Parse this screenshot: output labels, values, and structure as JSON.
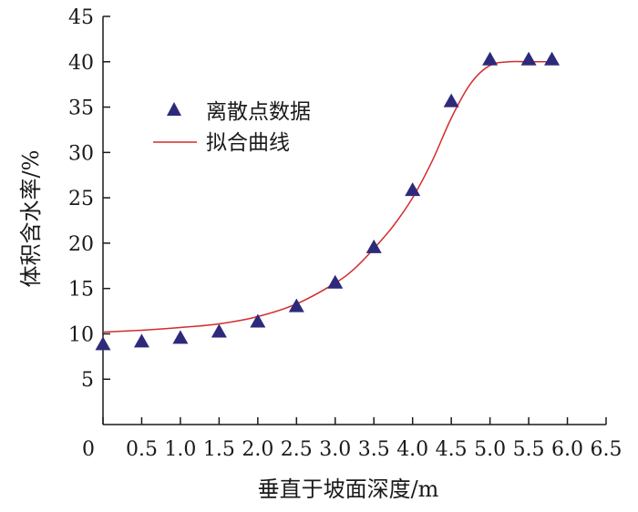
{
  "chart_data": {
    "type": "scatter",
    "title": "",
    "xlabel": "垂直于坡面深度/m",
    "ylabel": "体积含水率/%",
    "xlim": [
      0,
      6.5
    ],
    "ylim": [
      0,
      45
    ],
    "x_ticks": [
      0,
      0.5,
      1.0,
      1.5,
      2.0,
      2.5,
      3.0,
      3.5,
      4.0,
      4.5,
      5.0,
      5.5,
      6.0,
      6.5
    ],
    "x_tick_labels": [
      "0",
      "0.5",
      "1.0",
      "1.5",
      "2.0",
      "2.5",
      "3.0",
      "3.5",
      "4.0",
      "4.5",
      "5.0",
      "5.5",
      "6.0",
      "6.5"
    ],
    "y_ticks": [
      5,
      10,
      15,
      20,
      25,
      30,
      35,
      40,
      45
    ],
    "y_tick_labels": [
      "5",
      "10",
      "15",
      "20",
      "25",
      "30",
      "35",
      "40",
      "45"
    ],
    "grid": false,
    "legend_position": "upper-left",
    "series": [
      {
        "name": "离散点数据",
        "kind": "scatter",
        "marker": "triangle",
        "color": "#2e2a7a",
        "x": [
          0,
          0.5,
          1.0,
          1.5,
          2.0,
          2.5,
          3.0,
          3.5,
          4.0,
          4.5,
          5.0,
          5.5,
          5.8
        ],
        "y": [
          8.8,
          9.1,
          9.5,
          10.2,
          11.3,
          13.0,
          15.6,
          19.5,
          25.8,
          35.6,
          40.2,
          40.2,
          40.2
        ]
      },
      {
        "name": "拟合曲线",
        "kind": "line",
        "color": "#d42b2b",
        "x": [
          0,
          0.5,
          1.0,
          1.5,
          2.0,
          2.5,
          3.0,
          3.25,
          3.5,
          3.75,
          4.0,
          4.25,
          4.5,
          4.75,
          5.0,
          5.25,
          5.5,
          5.8
        ],
        "y": [
          10.2,
          10.4,
          10.7,
          11.1,
          11.9,
          13.3,
          15.6,
          17.2,
          19.4,
          21.9,
          25.0,
          29.0,
          33.8,
          37.6,
          39.6,
          40.0,
          40.0,
          40.0
        ]
      }
    ]
  }
}
